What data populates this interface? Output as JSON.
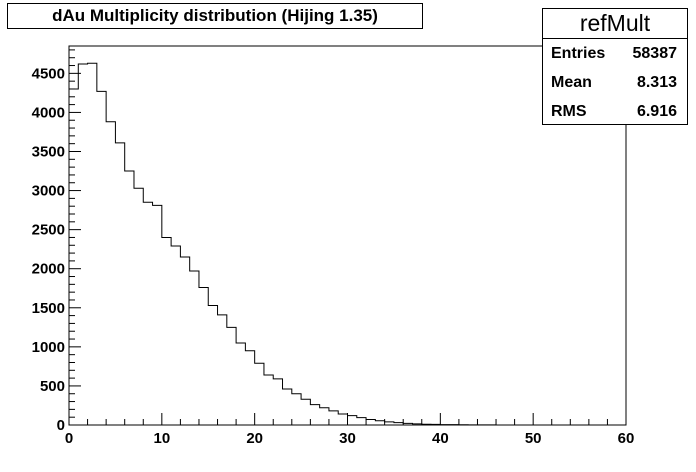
{
  "chart_data": {
    "type": "histogram",
    "title": "dAu Multiplicity distribution (Hijing 1.35)",
    "xlim": [
      0,
      60
    ],
    "ylim": [
      0,
      4850
    ],
    "x_ticks": [
      0,
      10,
      20,
      30,
      40,
      50,
      60
    ],
    "y_ticks": [
      0,
      500,
      1000,
      1500,
      2000,
      2500,
      3000,
      3500,
      4000,
      4500
    ],
    "bin_width": 1,
    "bin_start": 0,
    "values": [
      4300,
      4620,
      4630,
      4270,
      3880,
      3610,
      3250,
      3030,
      2850,
      2810,
      2400,
      2290,
      2150,
      1970,
      1760,
      1530,
      1410,
      1250,
      1050,
      950,
      790,
      640,
      590,
      460,
      400,
      330,
      260,
      220,
      180,
      140,
      120,
      95,
      70,
      55,
      40,
      30,
      20,
      15,
      10,
      8,
      5,
      4,
      3,
      2,
      1,
      1,
      0,
      0,
      0,
      0,
      0,
      0,
      0,
      0,
      0,
      0,
      0,
      0,
      0,
      0
    ],
    "grid": false,
    "legend": "none",
    "stats": {
      "name": "refMult",
      "rows": [
        {
          "label": "Entries",
          "value": "58387"
        },
        {
          "label": "Mean",
          "value": "8.313"
        },
        {
          "label": "RMS",
          "value": "6.916"
        }
      ]
    },
    "colors": {
      "line": "#000000",
      "frame": "#000000",
      "background": "#ffffff"
    }
  }
}
